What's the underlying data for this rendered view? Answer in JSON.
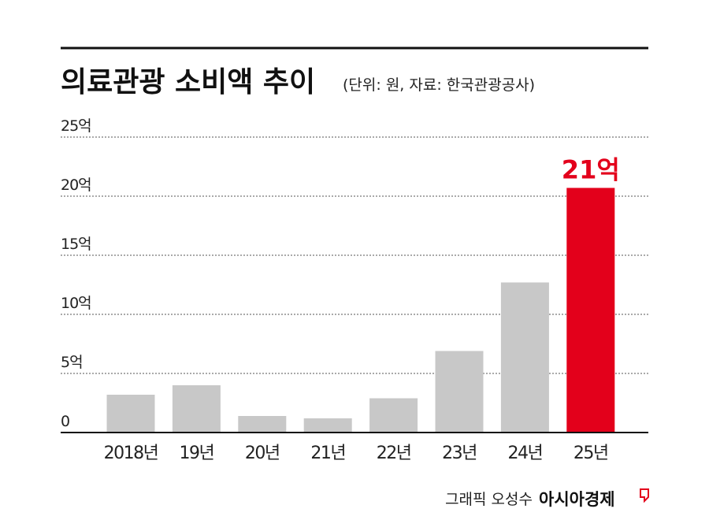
{
  "header": {
    "title": "의료관광 소비액 추이",
    "subtitle": "(단위: 원, 자료: 한국관광공사)"
  },
  "credit": {
    "author": "그래픽 오성수",
    "brand": "아시아경제"
  },
  "colors": {
    "bar": "#c8c8c8",
    "highlight": "#e3001b",
    "axis": "#111111",
    "grid": "#555555"
  },
  "chart_data": {
    "type": "bar",
    "categories": [
      "2018년",
      "19년",
      "20년",
      "21년",
      "22년",
      "23년",
      "24년",
      "25년"
    ],
    "values": [
      3.2,
      4.0,
      1.4,
      1.2,
      2.9,
      6.9,
      12.7,
      20.7
    ],
    "ylim": [
      0,
      25
    ],
    "yticks": [
      0,
      5,
      10,
      15,
      20,
      25
    ],
    "ytick_labels": [
      "0",
      "5억",
      "10억",
      "15억",
      "20억",
      "25억"
    ],
    "unit": "억",
    "grid": true,
    "highlight_index": 7,
    "highlight_label": "21억"
  }
}
